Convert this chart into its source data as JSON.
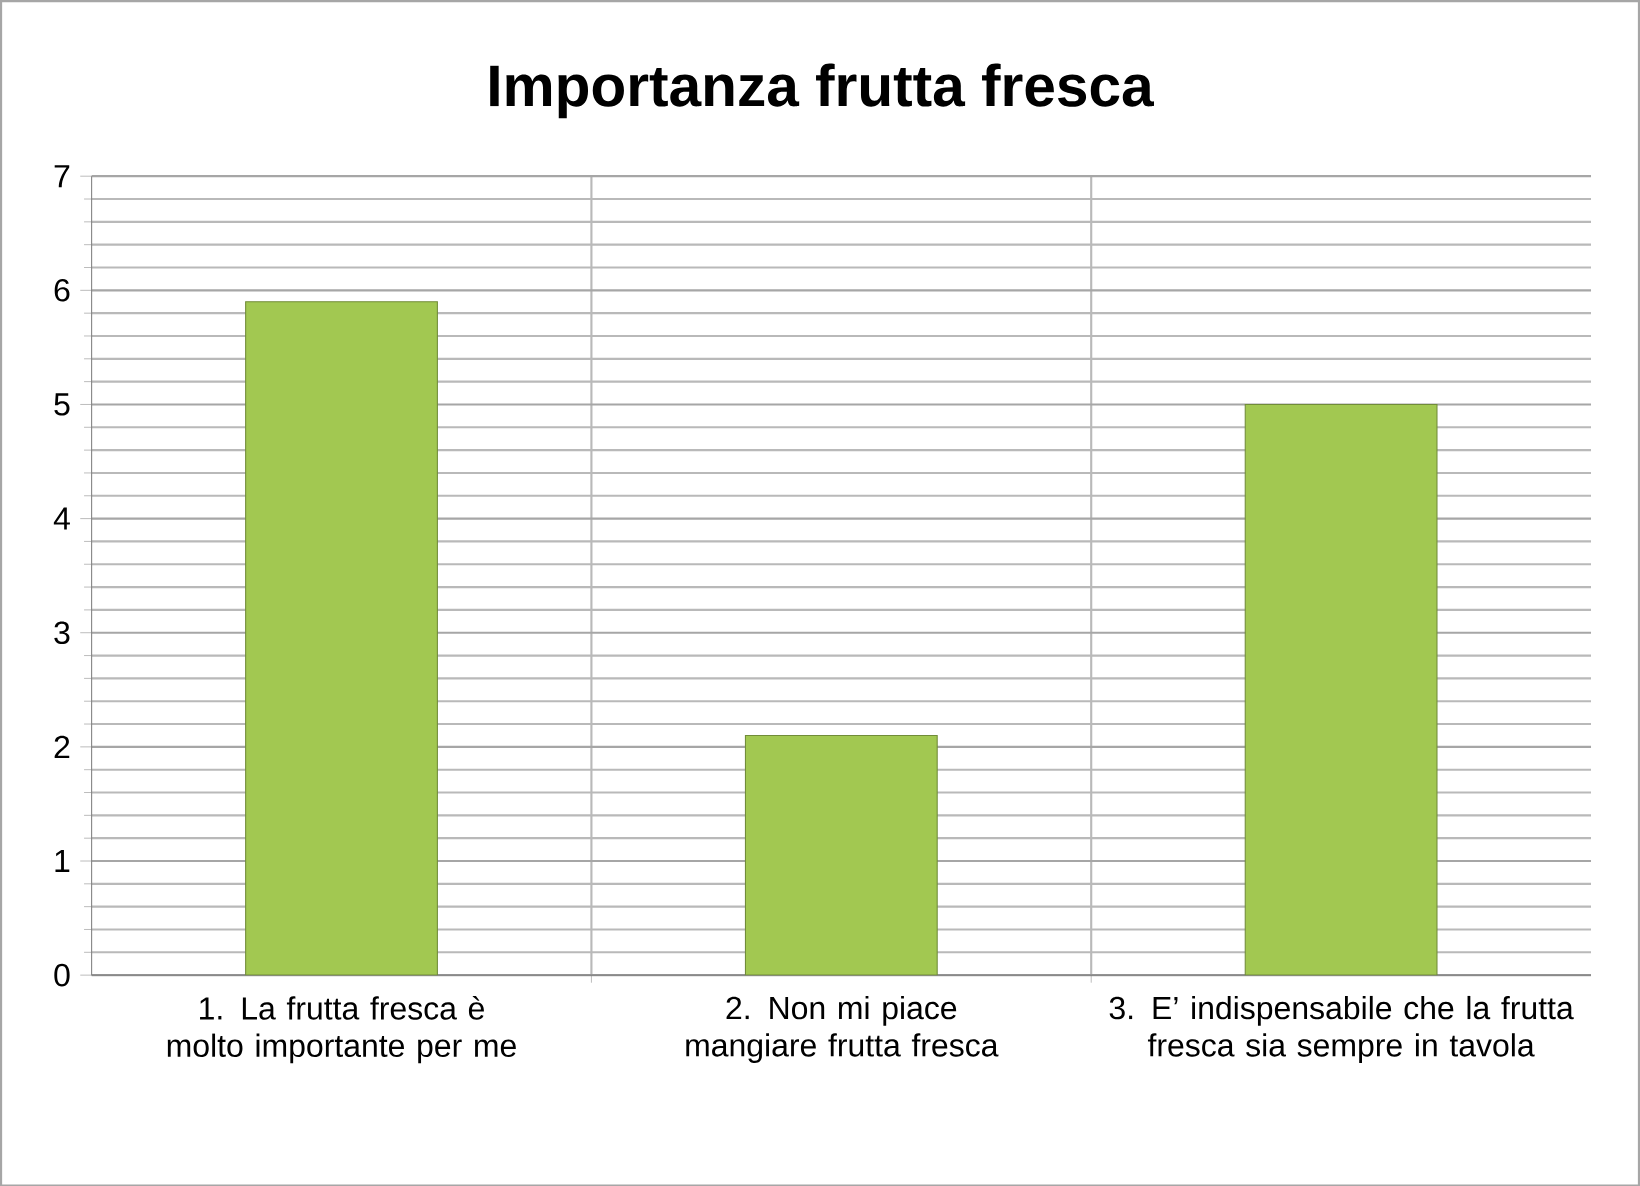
{
  "chart_data": {
    "type": "bar",
    "title": "Importanza frutta fresca",
    "categories": [
      "1. La frutta fresca è molto importante per me",
      "2. Non mi piace mangiare frutta fresca",
      "3. E’ indispensabile che la frutta fresca sia sempre in tavola"
    ],
    "values": [
      5.9,
      2.1,
      5.0
    ],
    "color": "#a2c851",
    "ylim": [
      0,
      7
    ],
    "yticks": [
      0,
      1,
      2,
      3,
      4,
      5,
      6,
      7
    ],
    "grid": true
  }
}
